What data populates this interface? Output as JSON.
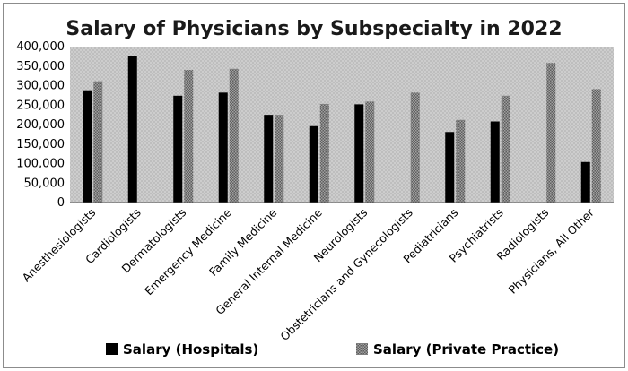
{
  "chart_data": {
    "type": "bar",
    "title": "Salary of Physicians by Subspecialty in 2022",
    "xlabel": "",
    "ylabel": "",
    "ylim": [
      0,
      400000
    ],
    "yticks": [
      0,
      50000,
      100000,
      150000,
      200000,
      250000,
      300000,
      350000,
      400000
    ],
    "ytick_labels": [
      "0",
      "50,000",
      "100,000",
      "150,000",
      "200,000",
      "250,000",
      "300,000",
      "350,000",
      "400,000"
    ],
    "categories": [
      "Anesthesiologists",
      "Cardiologists",
      "Dermatologists",
      "Emergency Medicine",
      "Family Medicine",
      "General Internal Medicine",
      "Neurologists",
      "Obstetricians and Gynecologists",
      "Pediatricians",
      "Psychiatrists",
      "Radiologists",
      "Physicians, All Other"
    ],
    "series": [
      {
        "name": "Salary (Hospitals)",
        "color": "#000000",
        "values": [
          288000,
          376000,
          274000,
          282000,
          225000,
          196000,
          252000,
          null,
          181000,
          208000,
          null,
          104000
        ]
      },
      {
        "name": "Salary (Private Practice)",
        "color": "#7a7a7a",
        "values": [
          311000,
          null,
          340000,
          343000,
          225000,
          253000,
          259000,
          282000,
          212000,
          274000,
          358000,
          291000
        ]
      }
    ],
    "legend_position": "bottom",
    "grid": false
  }
}
